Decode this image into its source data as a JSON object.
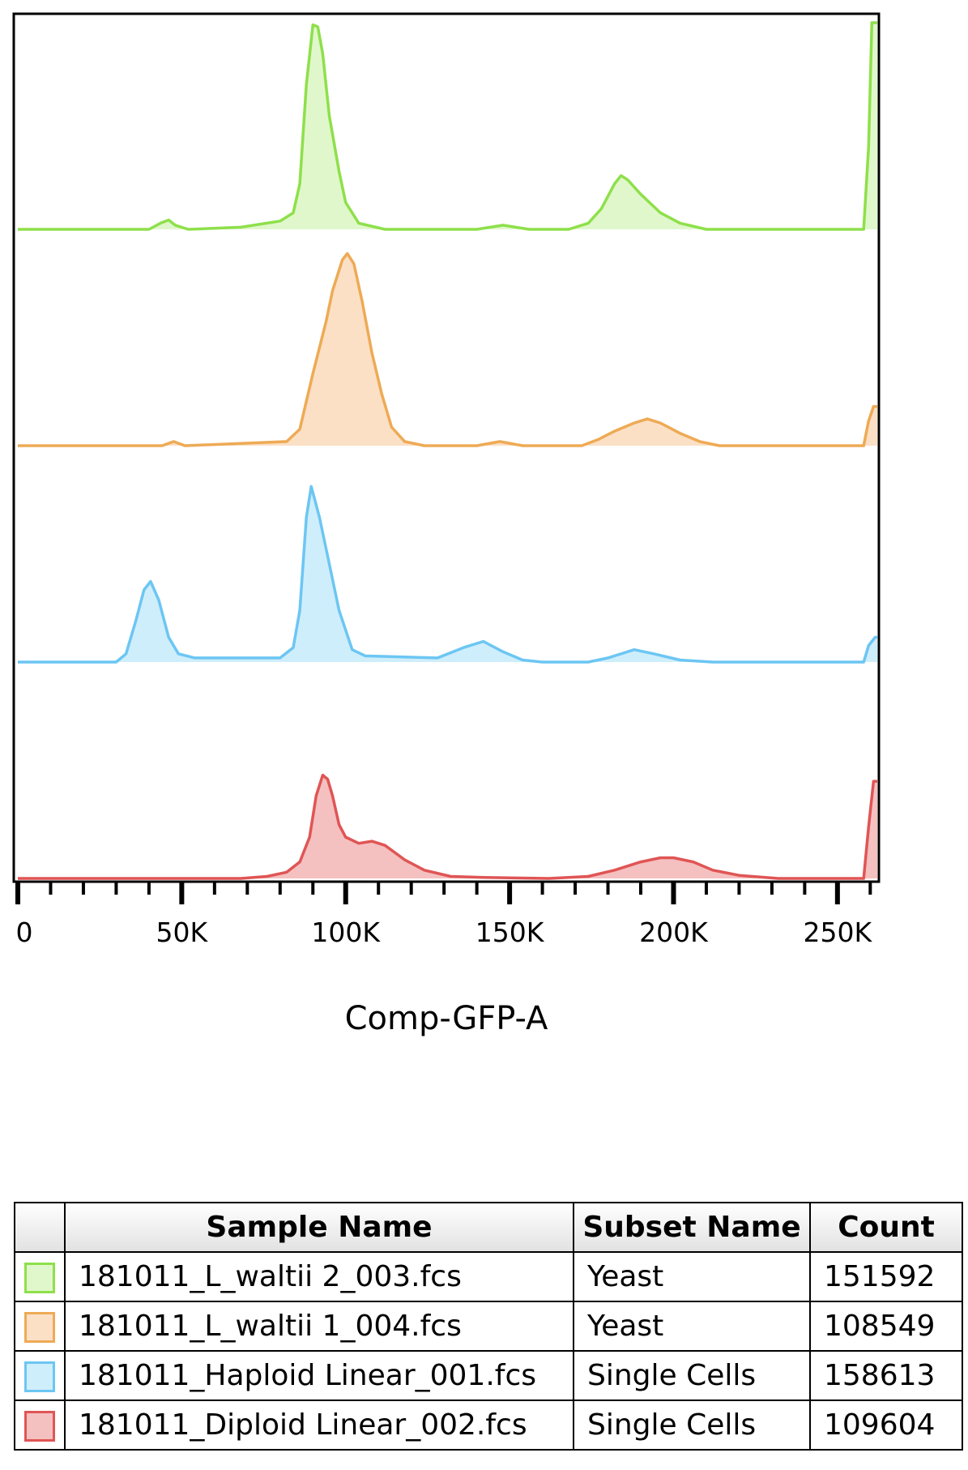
{
  "chart_data": {
    "type": "area",
    "layout": "stacked-offset-histograms",
    "xlabel": "Comp-GFP-A",
    "ylabel": "",
    "title": "",
    "xlim": [
      0,
      262144
    ],
    "x_ticks": [
      0,
      50000,
      100000,
      150000,
      200000,
      250000
    ],
    "x_tick_labels": [
      "0",
      "50K",
      "100K",
      "150K",
      "200K",
      "250K"
    ],
    "minor_tick_step": 10000,
    "series": [
      {
        "name": "181011_L_waltii 2_003.fcs",
        "subset": "Yeast",
        "count": "151592",
        "line_color": "#8ee04a",
        "fill_color": "#e0f7cb",
        "points": [
          [
            0,
            0
          ],
          [
            40000,
            0
          ],
          [
            43500,
            0.03
          ],
          [
            46000,
            0.045
          ],
          [
            48000,
            0.02
          ],
          [
            52000,
            0
          ],
          [
            68000,
            0.01
          ],
          [
            80000,
            0.04
          ],
          [
            84000,
            0.08
          ],
          [
            86000,
            0.22
          ],
          [
            88000,
            0.7
          ],
          [
            90000,
            0.99
          ],
          [
            91500,
            0.98
          ],
          [
            93000,
            0.85
          ],
          [
            95000,
            0.55
          ],
          [
            98000,
            0.28
          ],
          [
            100000,
            0.13
          ],
          [
            104000,
            0.03
          ],
          [
            112000,
            0
          ],
          [
            140000,
            0
          ],
          [
            148000,
            0.02
          ],
          [
            156000,
            0
          ],
          [
            168000,
            0
          ],
          [
            174000,
            0.03
          ],
          [
            178000,
            0.1
          ],
          [
            182000,
            0.22
          ],
          [
            184000,
            0.26
          ],
          [
            186000,
            0.24
          ],
          [
            190000,
            0.17
          ],
          [
            196000,
            0.08
          ],
          [
            202000,
            0.03
          ],
          [
            210000,
            0
          ],
          [
            258000,
            0
          ],
          [
            259500,
            0.4
          ],
          [
            260500,
            1.0
          ],
          [
            262144,
            1.0
          ]
        ]
      },
      {
        "name": "181011_L_waltii 1_004.fcs",
        "subset": "Yeast",
        "count": "108549",
        "line_color": "#eeaa55",
        "fill_color": "#fbe0c6",
        "points": [
          [
            0,
            0
          ],
          [
            44000,
            0
          ],
          [
            47500,
            0.02
          ],
          [
            51000,
            0
          ],
          [
            82000,
            0.02
          ],
          [
            86000,
            0.08
          ],
          [
            90000,
            0.35
          ],
          [
            94000,
            0.6
          ],
          [
            96000,
            0.75
          ],
          [
            99000,
            0.9
          ],
          [
            100500,
            0.93
          ],
          [
            102500,
            0.88
          ],
          [
            105000,
            0.7
          ],
          [
            108000,
            0.45
          ],
          [
            111000,
            0.25
          ],
          [
            114000,
            0.09
          ],
          [
            118000,
            0.02
          ],
          [
            124000,
            0
          ],
          [
            140000,
            0
          ],
          [
            147000,
            0.02
          ],
          [
            154000,
            0
          ],
          [
            172000,
            0
          ],
          [
            177000,
            0.03
          ],
          [
            182000,
            0.07
          ],
          [
            188000,
            0.11
          ],
          [
            192000,
            0.13
          ],
          [
            196000,
            0.11
          ],
          [
            202000,
            0.06
          ],
          [
            208000,
            0.02
          ],
          [
            214000,
            0
          ],
          [
            258000,
            0
          ],
          [
            259500,
            0.12
          ],
          [
            261000,
            0.19
          ],
          [
            262144,
            0.19
          ]
        ]
      },
      {
        "name": "181011_Haploid Linear_001.fcs",
        "subset": "Single Cells",
        "count": "158613",
        "line_color": "#6cc6f3",
        "fill_color": "#cfeefb",
        "points": [
          [
            0,
            0
          ],
          [
            30000,
            0
          ],
          [
            33000,
            0.04
          ],
          [
            36000,
            0.2
          ],
          [
            38500,
            0.35
          ],
          [
            40500,
            0.39
          ],
          [
            43000,
            0.3
          ],
          [
            46000,
            0.12
          ],
          [
            49000,
            0.04
          ],
          [
            54000,
            0.02
          ],
          [
            80000,
            0.02
          ],
          [
            84000,
            0.07
          ],
          [
            86000,
            0.25
          ],
          [
            88000,
            0.7
          ],
          [
            89500,
            0.85
          ],
          [
            90500,
            0.79
          ],
          [
            92000,
            0.7
          ],
          [
            94000,
            0.55
          ],
          [
            98000,
            0.25
          ],
          [
            102000,
            0.06
          ],
          [
            106000,
            0.03
          ],
          [
            128000,
            0.02
          ],
          [
            136000,
            0.07
          ],
          [
            142000,
            0.1
          ],
          [
            148000,
            0.05
          ],
          [
            154000,
            0.01
          ],
          [
            160000,
            0
          ],
          [
            174000,
            0
          ],
          [
            180000,
            0.02
          ],
          [
            188000,
            0.06
          ],
          [
            194000,
            0.04
          ],
          [
            202000,
            0.01
          ],
          [
            212000,
            0
          ],
          [
            258000,
            0
          ],
          [
            259500,
            0.08
          ],
          [
            261500,
            0.12
          ],
          [
            262144,
            0.12
          ]
        ]
      },
      {
        "name": "181011_Diploid Linear_002.fcs",
        "subset": "Single Cells",
        "count": "109604",
        "line_color": "#e05555",
        "fill_color": "#f5c0c0",
        "points": [
          [
            0,
            0
          ],
          [
            68000,
            0
          ],
          [
            76000,
            0.01
          ],
          [
            82000,
            0.03
          ],
          [
            86000,
            0.08
          ],
          [
            89000,
            0.2
          ],
          [
            91000,
            0.4
          ],
          [
            93000,
            0.5
          ],
          [
            94500,
            0.48
          ],
          [
            96000,
            0.4
          ],
          [
            98000,
            0.26
          ],
          [
            100000,
            0.2
          ],
          [
            104000,
            0.17
          ],
          [
            108000,
            0.18
          ],
          [
            112000,
            0.16
          ],
          [
            118000,
            0.09
          ],
          [
            124000,
            0.04
          ],
          [
            132000,
            0.01
          ],
          [
            142000,
            0.005
          ],
          [
            162000,
            0
          ],
          [
            174000,
            0.01
          ],
          [
            182000,
            0.04
          ],
          [
            190000,
            0.08
          ],
          [
            196000,
            0.1
          ],
          [
            200000,
            0.1
          ],
          [
            206000,
            0.08
          ],
          [
            212000,
            0.04
          ],
          [
            220000,
            0.015
          ],
          [
            232000,
            0
          ],
          [
            258000,
            0
          ],
          [
            259500,
            0.25
          ],
          [
            261000,
            0.47
          ],
          [
            262144,
            0.47
          ]
        ]
      }
    ]
  },
  "legend": {
    "headers": {
      "swatch": "",
      "sample": "Sample Name",
      "subset": "Subset Name",
      "count": "Count"
    }
  }
}
